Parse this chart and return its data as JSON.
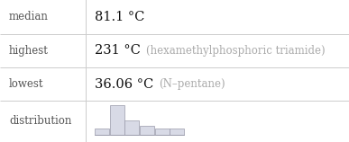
{
  "rows": [
    {
      "label": "median",
      "value": "81.1 °C",
      "note": ""
    },
    {
      "label": "highest",
      "value": "231 °C",
      "note": "(hexamethylphosphoric triamide)"
    },
    {
      "label": "lowest",
      "value": "36.06 °C",
      "note": "(N–pentane)"
    },
    {
      "label": "distribution",
      "value": "",
      "note": ""
    }
  ],
  "hist_bars": [
    1,
    5,
    2.5,
    1.5,
    1,
    1
  ],
  "hist_bar_color": "#d8dae6",
  "hist_bar_edge_color": "#9999aa",
  "label_color": "#555555",
  "value_color": "#111111",
  "note_color": "#aaaaaa",
  "bg_color": "#ffffff",
  "line_color": "#cccccc",
  "label_fontsize": 8.5,
  "value_fontsize": 10.5,
  "note_fontsize": 8.5,
  "col_divider": 95,
  "row_tops": [
    158,
    120,
    83,
    46,
    0
  ]
}
